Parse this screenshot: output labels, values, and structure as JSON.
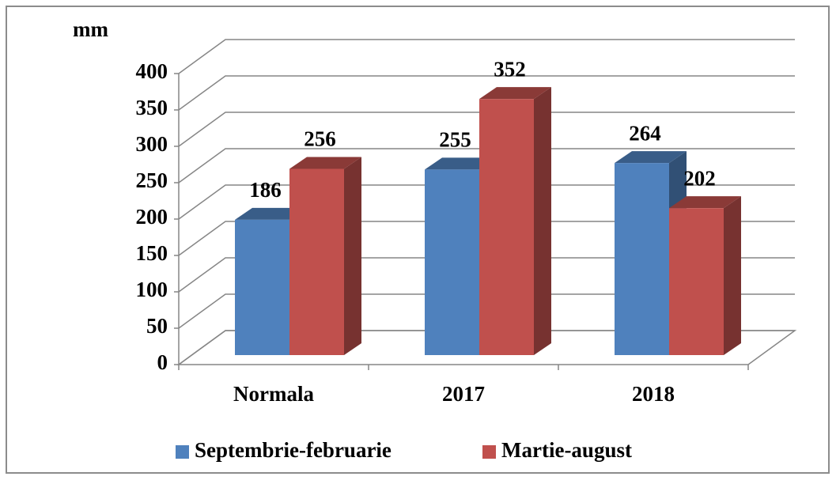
{
  "chart_data": {
    "type": "bar3d",
    "y_label": "mm",
    "categories": [
      "Normala",
      "2017",
      "2018"
    ],
    "series": [
      {
        "name": "Septembrie-februarie",
        "color": "#4f81bd",
        "values": [
          186,
          255,
          264
        ]
      },
      {
        "name": "Martie-august",
        "color": "#c0504d",
        "values": [
          256,
          352,
          202
        ]
      }
    ],
    "ylim": [
      0,
      400
    ],
    "yticks": [
      0,
      50,
      100,
      150,
      200,
      250,
      300,
      350,
      400
    ],
    "grid": true,
    "legend": "bottom"
  }
}
